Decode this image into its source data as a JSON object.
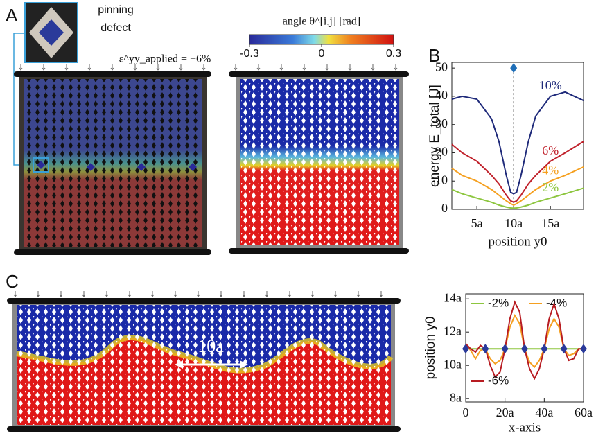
{
  "panels": {
    "a": "A",
    "b": "B",
    "c": "C"
  },
  "inset_label": [
    "pinning",
    "defect"
  ],
  "strain_label": "ε^yy_applied = −6%",
  "colorbar": {
    "label": "angle θ^[i,j] [rad]",
    "lim": [
      -0.3,
      0.3
    ],
    "ticks": [
      -0.3,
      0,
      0.3
    ]
  },
  "wavelength_label": "10a",
  "chart_data": [
    {
      "type": "line",
      "xlabel": "position y0",
      "ylabel": "energy E_total [J]",
      "x": [
        1.6,
        3,
        5,
        7,
        8,
        9,
        9.6,
        10,
        10.4,
        11,
        12,
        13,
        15,
        17,
        19.5
      ],
      "series": [
        {
          "name": "10%",
          "color": "#1f2a7a",
          "values": [
            39,
            40,
            39,
            32,
            24,
            12,
            6,
            5.5,
            6,
            12,
            24,
            33,
            40,
            41.5,
            38.5
          ]
        },
        {
          "name": "6%",
          "color": "#c0202a",
          "values": [
            23,
            20,
            17,
            12,
            9,
            5,
            3,
            2.5,
            3,
            5,
            9,
            12,
            17,
            20,
            24
          ]
        },
        {
          "name": "4%",
          "color": "#f5a020",
          "values": [
            14.5,
            12,
            10,
            7,
            5,
            3,
            2,
            1.5,
            2,
            3,
            5,
            7,
            10,
            12,
            15
          ]
        },
        {
          "name": "2%",
          "color": "#8dc63f",
          "values": [
            7,
            5.5,
            4,
            2.5,
            1.5,
            0.8,
            0.5,
            0.4,
            0.5,
            0.8,
            1.5,
            2.5,
            4,
            5.5,
            7.5
          ]
        }
      ],
      "markers": {
        "x": [
          10
        ],
        "y": [
          50
        ],
        "color": "#1f6fb8"
      },
      "xlim": [
        1.6,
        19.5
      ],
      "ylim": [
        0,
        52
      ],
      "xticks": [
        {
          "value": 5,
          "label": "5a"
        },
        {
          "value": 10,
          "label": "10a"
        },
        {
          "value": 15,
          "label": "15a"
        }
      ],
      "yticks": [
        0,
        10,
        20,
        30,
        40,
        50
      ]
    },
    {
      "type": "line",
      "xlabel": "x-axis",
      "ylabel": "position y0",
      "x": [
        0,
        2.5,
        5,
        7.5,
        10,
        12.5,
        15,
        17.5,
        20,
        22.5,
        25,
        27.5,
        30,
        32.5,
        35,
        37.5,
        40,
        42.5,
        45,
        47.5,
        50,
        52.5,
        55,
        57.5,
        60
      ],
      "series": [
        {
          "name": "-2%",
          "color": "#8dc63f",
          "values": [
            11,
            11,
            11,
            11,
            11,
            11,
            11,
            11,
            11,
            11,
            11,
            11,
            11,
            11,
            11,
            11,
            11,
            11,
            11,
            11,
            11,
            11,
            11,
            11,
            11
          ]
        },
        {
          "name": "-4%",
          "color": "#f5a020",
          "values": [
            11.3,
            10.9,
            10.4,
            10.9,
            11.0,
            10.4,
            10.1,
            10.3,
            11.0,
            12.3,
            13.0,
            12.5,
            11.0,
            10.2,
            9.9,
            10.3,
            11.0,
            12.2,
            12.8,
            12.3,
            11.0,
            10.6,
            10.7,
            11.0,
            11.0
          ]
        },
        {
          "name": "-6%",
          "color": "#b81c22",
          "values": [
            11.3,
            11.0,
            10.8,
            11.2,
            11.0,
            10.0,
            9.3,
            9.6,
            11.0,
            12.8,
            13.8,
            13.2,
            11.0,
            9.8,
            9.2,
            9.8,
            11.0,
            12.8,
            13.7,
            12.8,
            11.0,
            10.3,
            10.4,
            11.0,
            11.0
          ]
        }
      ],
      "markers": {
        "x": [
          0,
          10,
          20,
          30,
          40,
          50,
          60
        ],
        "y": [
          11,
          11,
          11,
          11,
          11,
          11,
          11
        ],
        "color": "#2a3a9a"
      },
      "xlim": [
        0,
        60
      ],
      "ylim": [
        7.8,
        14.3
      ],
      "xticks": [
        0,
        {
          "value": 20,
          "label": "20a"
        },
        {
          "value": 40,
          "label": "40a"
        },
        {
          "value": 60,
          "label": "60a"
        }
      ],
      "yticks": [
        {
          "value": 8,
          "label": "8a"
        },
        {
          "value": 10,
          "label": "10a"
        },
        {
          "value": 12,
          "label": "12a"
        },
        {
          "value": 14,
          "label": "14a"
        }
      ]
    }
  ]
}
